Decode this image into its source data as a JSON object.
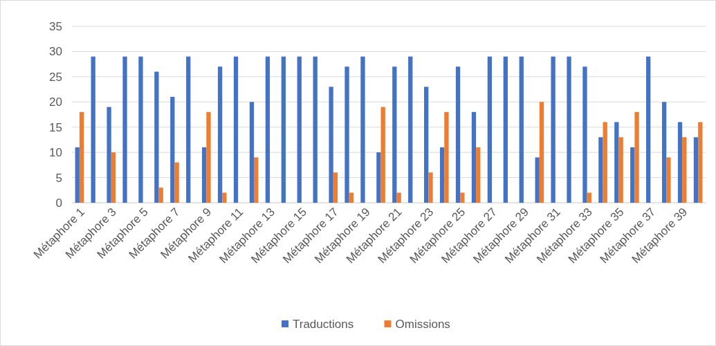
{
  "chart_data": {
    "type": "bar",
    "categories": [
      "Métaphore 1",
      null,
      "Métaphore 3",
      null,
      "Métaphore 5",
      null,
      "Métaphore 7",
      null,
      "Métaphore 9",
      null,
      "Métaphore 11",
      null,
      "Métaphore 13",
      null,
      "Métaphore 15",
      null,
      "Métaphore 17",
      null,
      "Métaphore 19",
      null,
      "Métaphore 21",
      null,
      "Métaphore 23",
      null,
      "Métaphore 25",
      null,
      "Métaphore 27",
      null,
      "Métaphore 29",
      null,
      "Métaphore 31",
      null,
      "Métaphore 33",
      null,
      "Métaphore 35",
      null,
      "Métaphore 37",
      null,
      "Métaphore 39",
      null
    ],
    "series": [
      {
        "name": "Traductions",
        "color": "#4472c4",
        "values": [
          11,
          29,
          19,
          29,
          29,
          26,
          21,
          29,
          11,
          27,
          29,
          20,
          29,
          29,
          29,
          29,
          23,
          27,
          29,
          10,
          27,
          29,
          23,
          11,
          27,
          18,
          29,
          29,
          29,
          9,
          29,
          29,
          27,
          13,
          16,
          11,
          29,
          20,
          16,
          13
        ]
      },
      {
        "name": "Omissions",
        "color": "#ed7d31",
        "values": [
          18,
          0,
          10,
          0,
          0,
          3,
          8,
          0,
          18,
          2,
          0,
          9,
          0,
          0,
          0,
          0,
          6,
          2,
          0,
          19,
          2,
          0,
          6,
          18,
          2,
          11,
          0,
          0,
          0,
          20,
          0,
          0,
          2,
          16,
          13,
          18,
          0,
          9,
          13,
          16
        ]
      }
    ],
    "ylim": [
      0,
      35
    ],
    "yticks": [
      0,
      5,
      10,
      15,
      20,
      25,
      30,
      35
    ],
    "grid": "y",
    "legend": "bottom"
  }
}
